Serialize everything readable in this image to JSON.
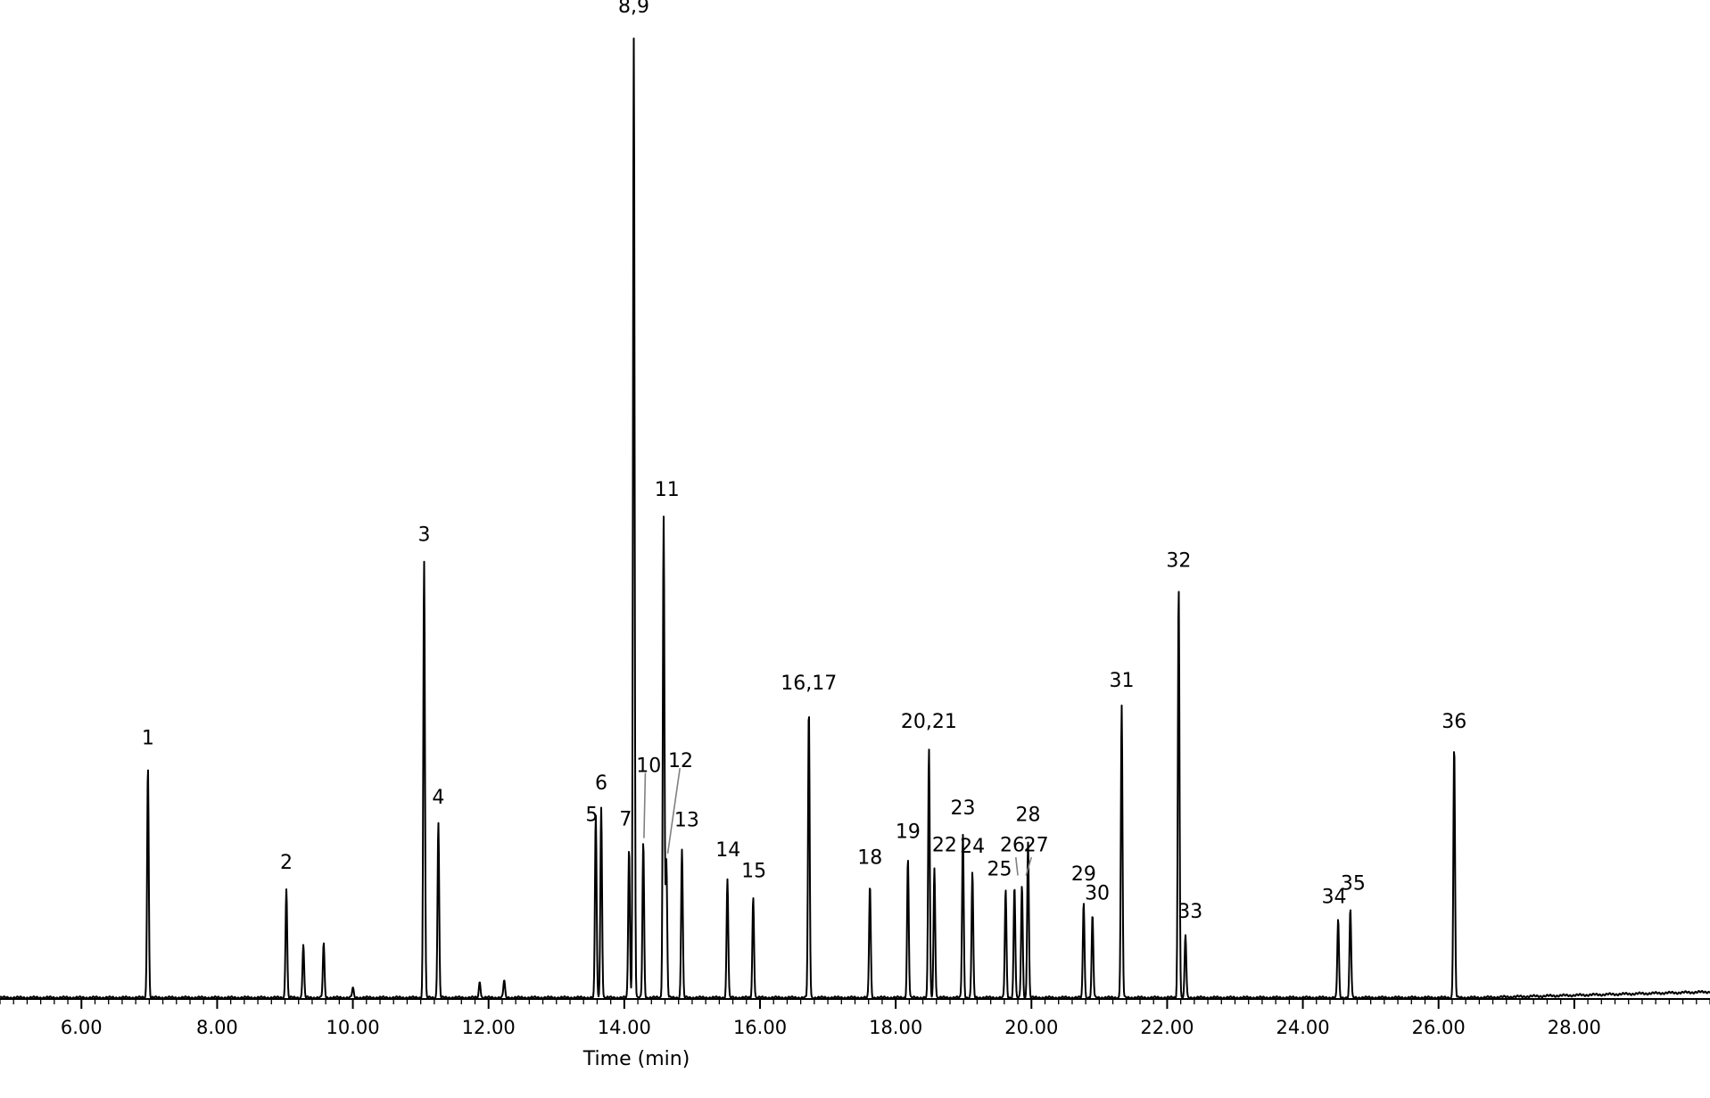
{
  "chart_data": {
    "type": "line",
    "xlabel": "Time (min)",
    "ylabel": "",
    "xlim": [
      4.8,
      30.0
    ],
    "ylim": [
      0,
      100
    ],
    "grid": false,
    "legend": "none",
    "line_color": "#000000",
    "callout_color": "#808080",
    "x_ticks": [
      {
        "value": 6,
        "label": "6.00"
      },
      {
        "value": 8,
        "label": "8.00"
      },
      {
        "value": 10,
        "label": "10.00"
      },
      {
        "value": 12,
        "label": "12.00"
      },
      {
        "value": 14,
        "label": "14.00"
      },
      {
        "value": 16,
        "label": "16.00"
      },
      {
        "value": 18,
        "label": "18.00"
      },
      {
        "value": 20,
        "label": "20.00"
      },
      {
        "value": 22,
        "label": "22.00"
      },
      {
        "value": 24,
        "label": "24.00"
      },
      {
        "value": 26,
        "label": "26.00"
      },
      {
        "value": 28,
        "label": "28.00"
      }
    ],
    "peaks": [
      {
        "t": 6.98,
        "h": 24.2
      },
      {
        "t": 9.02,
        "h": 11.4
      },
      {
        "t": 9.27,
        "h": 5.5
      },
      {
        "t": 9.57,
        "h": 5.6
      },
      {
        "t": 10.0,
        "h": 1.0
      },
      {
        "t": 11.05,
        "h": 45.6
      },
      {
        "t": 11.26,
        "h": 18.3
      },
      {
        "t": 11.87,
        "h": 1.7
      },
      {
        "t": 12.23,
        "h": 1.8
      },
      {
        "t": 13.58,
        "h": 19.1
      },
      {
        "t": 13.66,
        "h": 19.8
      },
      {
        "t": 14.07,
        "h": 15.6
      },
      {
        "t": 14.14,
        "h": 100.0
      },
      {
        "t": 14.28,
        "h": 16.2
      },
      {
        "t": 14.58,
        "h": 50.1
      },
      {
        "t": 14.62,
        "h": 14.2
      },
      {
        "t": 14.85,
        "h": 15.5
      },
      {
        "t": 15.52,
        "h": 12.4
      },
      {
        "t": 15.9,
        "h": 10.5
      },
      {
        "t": 16.72,
        "h": 30.1
      },
      {
        "t": 17.62,
        "h": 11.8
      },
      {
        "t": 18.18,
        "h": 14.5
      },
      {
        "t": 18.49,
        "h": 26.0
      },
      {
        "t": 18.57,
        "h": 13.5
      },
      {
        "t": 18.99,
        "h": 17.0
      },
      {
        "t": 19.13,
        "h": 13.1
      },
      {
        "t": 19.62,
        "h": 11.2
      },
      {
        "t": 19.75,
        "h": 11.7
      },
      {
        "t": 19.86,
        "h": 11.7
      },
      {
        "t": 19.95,
        "h": 16.3
      },
      {
        "t": 20.77,
        "h": 10.0
      },
      {
        "t": 20.9,
        "h": 8.6
      },
      {
        "t": 21.33,
        "h": 30.4
      },
      {
        "t": 22.17,
        "h": 42.9
      },
      {
        "t": 22.27,
        "h": 6.5
      },
      {
        "t": 24.52,
        "h": 8.2
      },
      {
        "t": 24.7,
        "h": 9.3
      },
      {
        "t": 26.23,
        "h": 26.3
      }
    ],
    "annotations": [
      {
        "text": "1",
        "t": 6.98,
        "h": 26.3
      },
      {
        "text": "2",
        "t": 9.02,
        "h": 13.3
      },
      {
        "text": "3",
        "t": 11.05,
        "h": 47.5
      },
      {
        "text": "4",
        "t": 11.26,
        "h": 20.1
      },
      {
        "text": "5",
        "t": 13.52,
        "h": 18.3
      },
      {
        "text": "6",
        "t": 13.66,
        "h": 21.6
      },
      {
        "text": "7",
        "t": 14.02,
        "h": 17.8
      },
      {
        "text": "8,9",
        "t": 14.14,
        "h": 102.6
      },
      {
        "text": "10",
        "t": 14.36,
        "h": 23.4
      },
      {
        "text": "11",
        "t": 14.63,
        "h": 52.2
      },
      {
        "text": "12",
        "t": 14.83,
        "h": 23.9
      },
      {
        "text": "13",
        "t": 14.92,
        "h": 17.7
      },
      {
        "text": "14",
        "t": 15.53,
        "h": 14.6
      },
      {
        "text": "15",
        "t": 15.91,
        "h": 12.4
      },
      {
        "text": "16,17",
        "t": 16.72,
        "h": 32.0
      },
      {
        "text": "18",
        "t": 17.62,
        "h": 13.8
      },
      {
        "text": "19",
        "t": 18.18,
        "h": 16.5
      },
      {
        "text": "20,21",
        "t": 18.49,
        "h": 28.0
      },
      {
        "text": "22",
        "t": 18.72,
        "h": 15.1
      },
      {
        "text": "23",
        "t": 18.99,
        "h": 19.0
      },
      {
        "text": "24",
        "t": 19.13,
        "h": 15.0
      },
      {
        "text": "25",
        "t": 19.53,
        "h": 12.6
      },
      {
        "text": "26",
        "t": 19.72,
        "h": 15.1
      },
      {
        "text": "27",
        "t": 20.07,
        "h": 15.1
      },
      {
        "text": "28",
        "t": 19.95,
        "h": 18.3
      },
      {
        "text": "29",
        "t": 20.77,
        "h": 12.1
      },
      {
        "text": "30",
        "t": 20.97,
        "h": 10.1
      },
      {
        "text": "31",
        "t": 21.33,
        "h": 32.3
      },
      {
        "text": "32",
        "t": 22.17,
        "h": 44.8
      },
      {
        "text": "33",
        "t": 22.34,
        "h": 8.2
      },
      {
        "text": "34",
        "t": 24.46,
        "h": 9.7
      },
      {
        "text": "35",
        "t": 24.74,
        "h": 11.1
      },
      {
        "text": "36",
        "t": 26.23,
        "h": 28.0
      }
    ],
    "callouts": [
      {
        "from": [
          14.31,
          23.3
        ],
        "to": [
          14.29,
          16.5
        ]
      },
      {
        "from": [
          14.82,
          23.8
        ],
        "to": [
          14.64,
          14.9
        ]
      },
      {
        "from": [
          19.77,
          14.5
        ],
        "to": [
          19.8,
          12.6
        ]
      },
      {
        "from": [
          20.0,
          14.5
        ],
        "to": [
          19.92,
          12.6
        ]
      }
    ]
  }
}
